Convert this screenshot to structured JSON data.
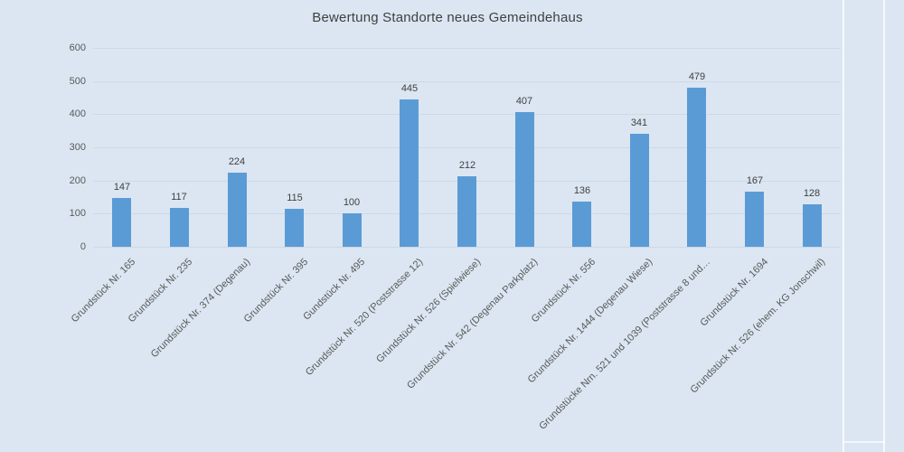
{
  "page": {
    "background_color": "#dbe6f2"
  },
  "chart_data": {
    "type": "bar",
    "title": "Bewertung Standorte neues Gemeindehaus",
    "categories": [
      "Grundstück Nr. 165",
      "Grundstück Nr. 235",
      "Grundstück Nr. 374 (Degenau)",
      "Grundstück Nr. 395",
      "Gundstück Nr. 495",
      "Grundstück Nr. 520 (Poststrasse 12)",
      "Grundstück Nr. 526 (Spielwiese)",
      "Grundstück Nr. 542 (Degenau Parkplatz)",
      "Grundstück Nr. 556",
      "Grundstück Nr. 1444 (Degenau Wiese)",
      "Grundstücke Nrn. 521 und 1039 (Poststrasse 8 und…",
      "Grundstück Nr. 1694",
      "Grundstück Nr. 526 (ehem. KG Jonschwil)"
    ],
    "values": [
      147,
      117,
      224,
      115,
      100,
      445,
      212,
      407,
      136,
      341,
      479,
      167,
      128
    ],
    "xlabel": "",
    "ylabel": "",
    "ylim": [
      0,
      600
    ],
    "yticks": [
      0,
      100,
      200,
      300,
      400,
      500,
      600
    ],
    "grid": true,
    "legend": "none",
    "bar_color": "#5b9bd5",
    "gridline_color": "#ced9e6",
    "title_color": "#404040",
    "value_label_color": "#404040",
    "axis_text_color": "#595959"
  }
}
